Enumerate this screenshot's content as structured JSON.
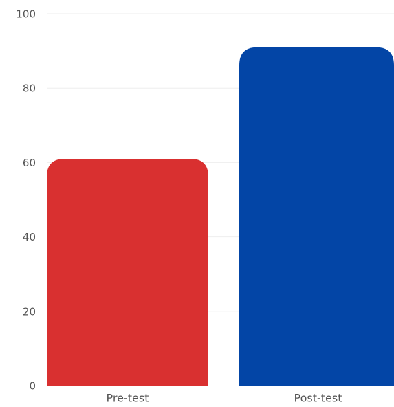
{
  "chart_data": {
    "type": "bar",
    "title": "",
    "xlabel": "",
    "ylabel": "",
    "categories": [
      "Pre-test",
      "Post-test"
    ],
    "values": [
      61,
      91
    ],
    "ylim": [
      0,
      100
    ],
    "yticks": [
      "0",
      "20",
      "40",
      "60",
      "80",
      "100"
    ],
    "grid": true,
    "legend": "none",
    "colors": [
      "#d93030",
      "#0345a6"
    ],
    "grid_color": "#eeeeee",
    "text_color": "#555555"
  }
}
